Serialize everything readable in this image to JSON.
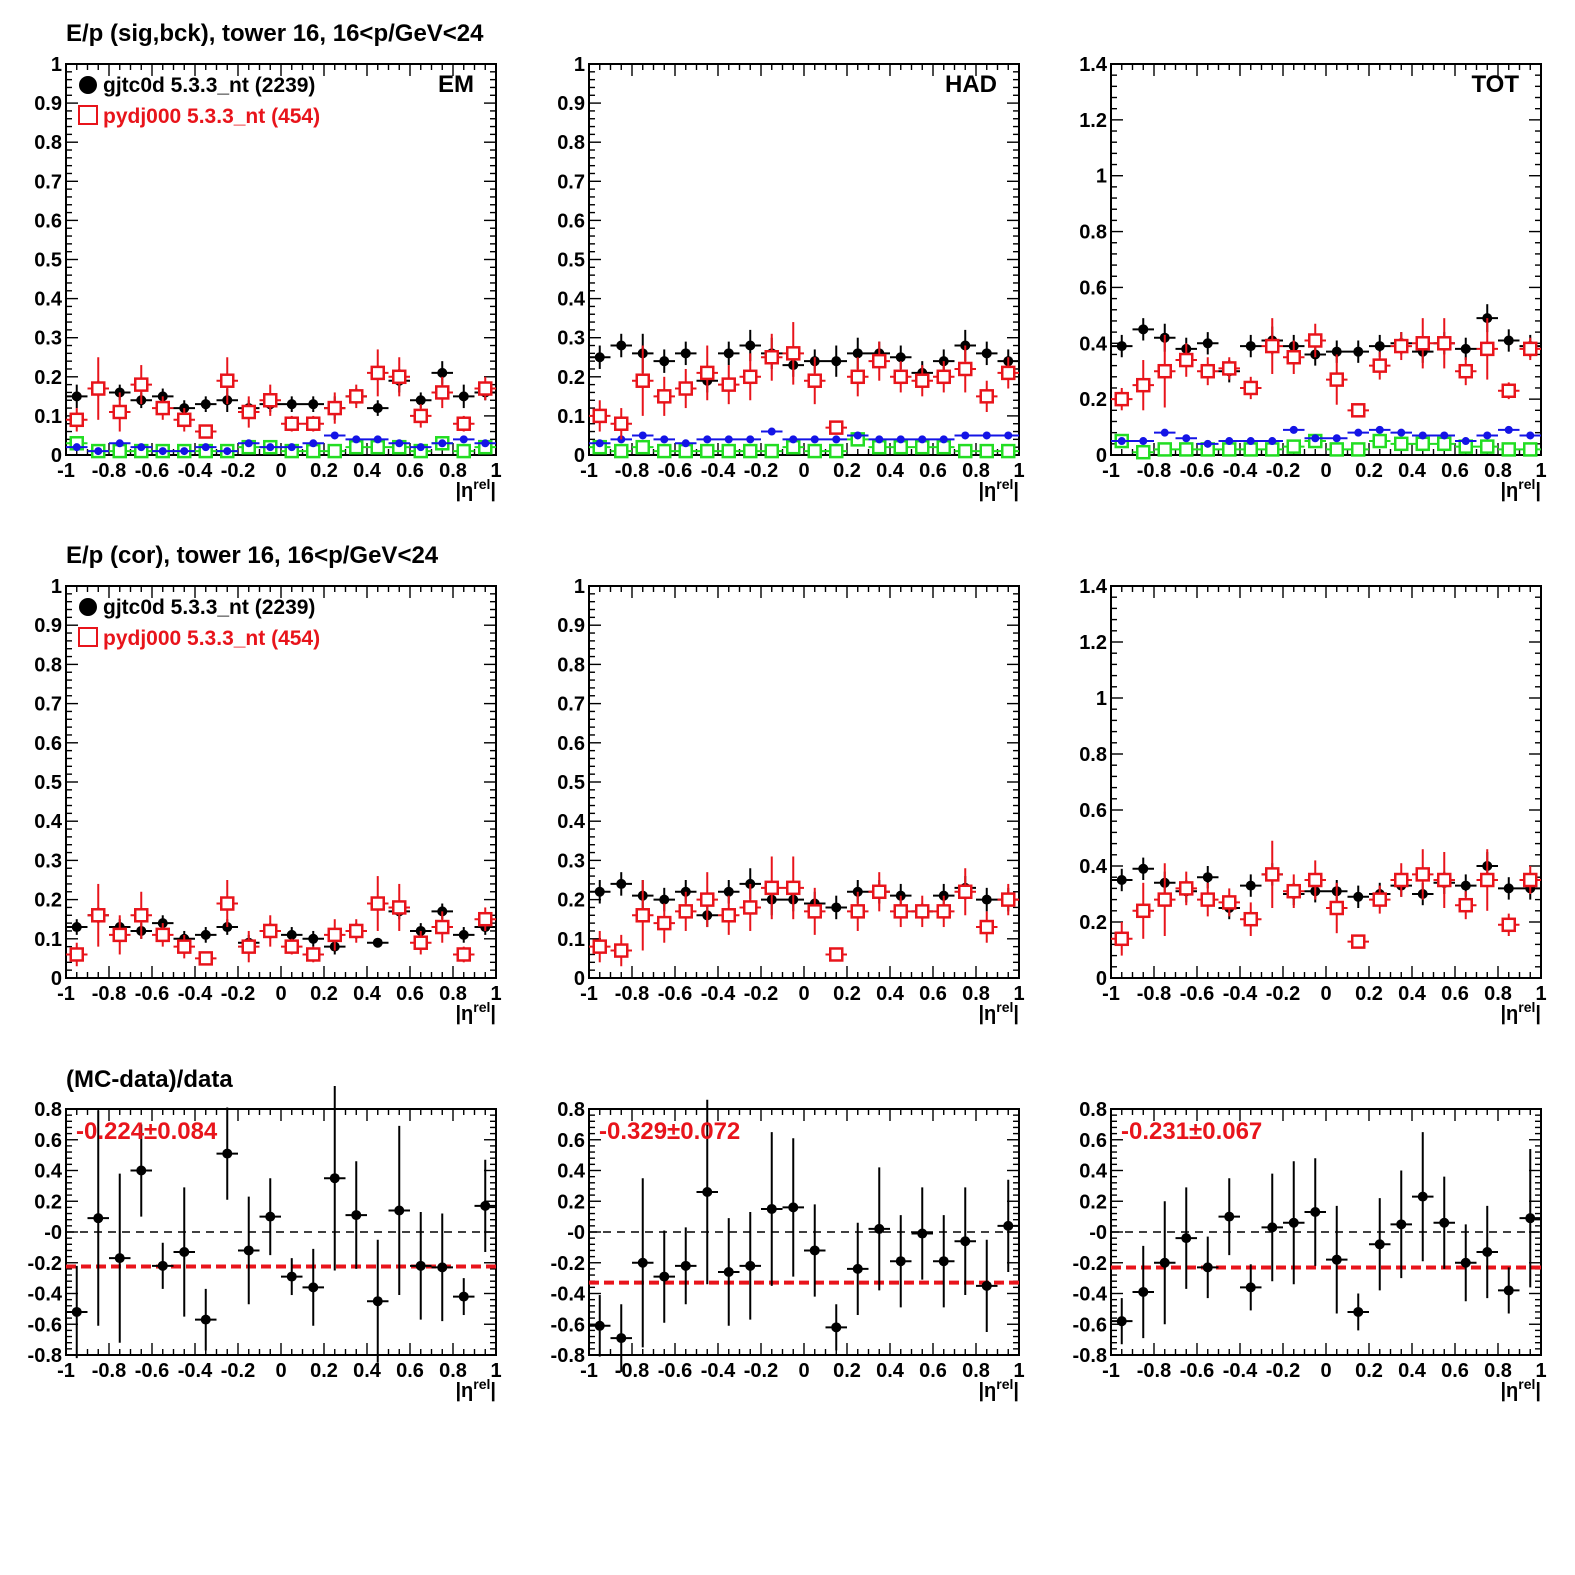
{
  "titles": {
    "row1": "E/p (sig,bck), tower 16, 16<p/GeV<24",
    "row2": "E/p (cor), tower 16, 16<p/GeV<24",
    "row3": "(MC-data)/data"
  },
  "colors": {
    "data": "#000000",
    "mc": "#e8141b",
    "blue": "#1414e6",
    "green": "#22dd22",
    "dash": "#e8141b"
  },
  "chart_data": {
    "type": "scatter",
    "x_centers": [
      -0.95,
      -0.85,
      -0.75,
      -0.65,
      -0.55,
      -0.45,
      -0.35,
      -0.25,
      -0.15,
      -0.05,
      0.05,
      0.15,
      0.25,
      0.35,
      0.45,
      0.55,
      0.65,
      0.75,
      0.85,
      0.95
    ],
    "xlabel": "|ηrel|",
    "xlabel_base": "|η",
    "xlabel_sup": "rel",
    "xlabel_end": "|",
    "xlim": [
      -1,
      1
    ],
    "x_ticks": [
      "-1",
      "-0.8",
      "-0.6",
      "-0.4",
      "-0.2",
      "0",
      "0.2",
      "0.4",
      "0.6",
      "0.8",
      "1"
    ],
    "legend": {
      "data": "gjtc0d 5.3.3_nt (2239)",
      "mc": "pydj000 5.3.3_nt (454)"
    },
    "row1": [
      {
        "label": "EM",
        "ylim": [
          0,
          1
        ],
        "y_ticks": [
          "0",
          "0.1",
          "0.2",
          "0.3",
          "0.4",
          "0.5",
          "0.6",
          "0.7",
          "0.8",
          "0.9",
          "1"
        ],
        "data": [
          0.15,
          0.17,
          0.16,
          0.14,
          0.15,
          0.12,
          0.13,
          0.14,
          0.12,
          0.13,
          0.13,
          0.13,
          0.12,
          0.15,
          0.12,
          0.19,
          0.14,
          0.21,
          0.15,
          0.16
        ],
        "data_err": [
          0.03,
          0.02,
          0.02,
          0.02,
          0.02,
          0.02,
          0.02,
          0.03,
          0.02,
          0.02,
          0.02,
          0.02,
          0.03,
          0.02,
          0.02,
          0.03,
          0.02,
          0.03,
          0.03,
          0.02
        ],
        "mc": [
          0.09,
          0.17,
          0.11,
          0.18,
          0.12,
          0.09,
          0.06,
          0.19,
          0.11,
          0.14,
          0.08,
          0.08,
          0.12,
          0.15,
          0.21,
          0.2,
          0.1,
          0.16,
          0.08,
          0.17
        ],
        "mc_err": [
          0.03,
          0.08,
          0.05,
          0.05,
          0.03,
          0.03,
          0.01,
          0.06,
          0.04,
          0.04,
          0.02,
          0.02,
          0.04,
          0.03,
          0.06,
          0.05,
          0.03,
          0.04,
          0.02,
          0.03
        ],
        "blue": [
          0.02,
          0.01,
          0.03,
          0.02,
          0.01,
          0.01,
          0.02,
          0.01,
          0.03,
          0.02,
          0.02,
          0.03,
          0.05,
          0.04,
          0.04,
          0.03,
          0.02,
          0.03,
          0.04,
          0.03
        ],
        "green": [
          0.03,
          0.01,
          0.01,
          0.01,
          0.01,
          0.01,
          0.01,
          0.01,
          0.02,
          0.02,
          0.01,
          0.01,
          0.01,
          0.02,
          0.02,
          0.02,
          0.01,
          0.03,
          0.01,
          0.02
        ]
      },
      {
        "label": "HAD",
        "ylim": [
          0,
          1
        ],
        "y_ticks": [
          "0",
          "0.1",
          "0.2",
          "0.3",
          "0.4",
          "0.5",
          "0.6",
          "0.7",
          "0.8",
          "0.9",
          "1"
        ],
        "data": [
          0.25,
          0.28,
          0.26,
          0.24,
          0.26,
          0.19,
          0.26,
          0.28,
          0.26,
          0.23,
          0.24,
          0.24,
          0.26,
          0.26,
          0.25,
          0.21,
          0.24,
          0.28,
          0.26,
          0.24
        ],
        "data_err": [
          0.03,
          0.03,
          0.05,
          0.03,
          0.03,
          0.03,
          0.03,
          0.04,
          0.04,
          0.03,
          0.03,
          0.04,
          0.04,
          0.03,
          0.03,
          0.03,
          0.03,
          0.04,
          0.03,
          0.03
        ],
        "mc": [
          0.1,
          0.08,
          0.19,
          0.15,
          0.17,
          0.21,
          0.18,
          0.2,
          0.25,
          0.26,
          0.19,
          0.07,
          0.2,
          0.24,
          0.2,
          0.19,
          0.2,
          0.22,
          0.15,
          0.21
        ],
        "mc_err": [
          0.04,
          0.04,
          0.09,
          0.05,
          0.05,
          0.07,
          0.05,
          0.06,
          0.06,
          0.08,
          0.06,
          0.01,
          0.05,
          0.05,
          0.04,
          0.04,
          0.04,
          0.06,
          0.04,
          0.04
        ],
        "blue": [
          0.03,
          0.04,
          0.05,
          0.04,
          0.03,
          0.04,
          0.04,
          0.04,
          0.06,
          0.04,
          0.04,
          0.04,
          0.05,
          0.04,
          0.04,
          0.04,
          0.04,
          0.05,
          0.05,
          0.05
        ],
        "green": [
          0.02,
          0.01,
          0.02,
          0.01,
          0.01,
          0.01,
          0.01,
          0.01,
          0.01,
          0.02,
          0.01,
          0.01,
          0.04,
          0.02,
          0.02,
          0.02,
          0.02,
          0.01,
          0.01,
          0.01
        ]
      },
      {
        "label": "TOT",
        "ylim": [
          0,
          1.4
        ],
        "y_ticks": [
          "0",
          "0.2",
          "0.4",
          "0.6",
          "0.8",
          "1",
          "1.2",
          "1.4"
        ],
        "data": [
          0.39,
          0.45,
          0.42,
          0.38,
          0.4,
          0.3,
          0.39,
          0.41,
          0.39,
          0.36,
          0.37,
          0.37,
          0.39,
          0.4,
          0.37,
          0.4,
          0.38,
          0.49,
          0.41,
          0.39
        ],
        "data_err": [
          0.04,
          0.04,
          0.05,
          0.04,
          0.04,
          0.04,
          0.04,
          0.05,
          0.04,
          0.04,
          0.04,
          0.04,
          0.04,
          0.04,
          0.04,
          0.04,
          0.04,
          0.05,
          0.04,
          0.04
        ],
        "mc": [
          0.2,
          0.25,
          0.3,
          0.34,
          0.3,
          0.31,
          0.24,
          0.39,
          0.35,
          0.41,
          0.27,
          0.16,
          0.32,
          0.39,
          0.4,
          0.4,
          0.3,
          0.38,
          0.23,
          0.38
        ],
        "mc_err": [
          0.04,
          0.09,
          0.13,
          0.06,
          0.05,
          0.04,
          0.04,
          0.1,
          0.06,
          0.06,
          0.09,
          0.01,
          0.05,
          0.05,
          0.09,
          0.09,
          0.05,
          0.11,
          0.03,
          0.04
        ],
        "blue": [
          0.05,
          0.05,
          0.08,
          0.06,
          0.04,
          0.05,
          0.05,
          0.05,
          0.09,
          0.06,
          0.06,
          0.08,
          0.09,
          0.08,
          0.07,
          0.07,
          0.05,
          0.07,
          0.09,
          0.07
        ],
        "green": [
          0.05,
          0.01,
          0.02,
          0.02,
          0.02,
          0.02,
          0.02,
          0.02,
          0.03,
          0.05,
          0.02,
          0.02,
          0.05,
          0.04,
          0.04,
          0.04,
          0.03,
          0.03,
          0.02,
          0.02
        ]
      }
    ],
    "row2": [
      {
        "ylim": [
          0,
          1
        ],
        "y_ticks": [
          "0",
          "0.1",
          "0.2",
          "0.3",
          "0.4",
          "0.5",
          "0.6",
          "0.7",
          "0.8",
          "0.9",
          "1"
        ],
        "data": [
          0.13,
          0.16,
          0.13,
          0.12,
          0.14,
          0.1,
          0.11,
          0.13,
          0.09,
          0.12,
          0.11,
          0.1,
          0.08,
          0.12,
          0.09,
          0.17,
          0.12,
          0.17,
          0.11,
          0.13
        ],
        "data_err": [
          0.02,
          0.02,
          0.02,
          0.02,
          0.02,
          0.02,
          0.02,
          0.02,
          0.02,
          0.02,
          0.02,
          0.02,
          0.02,
          0.02,
          0.01,
          0.02,
          0.02,
          0.02,
          0.02,
          0.02
        ],
        "mc": [
          0.06,
          0.16,
          0.11,
          0.16,
          0.11,
          0.08,
          0.05,
          0.19,
          0.08,
          0.12,
          0.08,
          0.06,
          0.11,
          0.12,
          0.19,
          0.18,
          0.09,
          0.13,
          0.06,
          0.15
        ],
        "mc_err": [
          0.03,
          0.08,
          0.05,
          0.06,
          0.03,
          0.03,
          0.01,
          0.06,
          0.04,
          0.04,
          0.02,
          0.02,
          0.04,
          0.03,
          0.07,
          0.06,
          0.03,
          0.04,
          0.02,
          0.03
        ]
      },
      {
        "ylim": [
          0,
          1
        ],
        "y_ticks": [
          "0",
          "0.1",
          "0.2",
          "0.3",
          "0.4",
          "0.5",
          "0.6",
          "0.7",
          "0.8",
          "0.9",
          "1"
        ],
        "data": [
          0.22,
          0.24,
          0.21,
          0.2,
          0.22,
          0.16,
          0.22,
          0.24,
          0.2,
          0.2,
          0.19,
          0.18,
          0.22,
          0.22,
          0.21,
          0.17,
          0.21,
          0.23,
          0.2,
          0.2
        ],
        "data_err": [
          0.03,
          0.03,
          0.04,
          0.03,
          0.03,
          0.03,
          0.03,
          0.04,
          0.04,
          0.03,
          0.03,
          0.03,
          0.03,
          0.03,
          0.03,
          0.02,
          0.03,
          0.03,
          0.03,
          0.03
        ],
        "mc": [
          0.08,
          0.07,
          0.16,
          0.14,
          0.17,
          0.2,
          0.16,
          0.18,
          0.23,
          0.23,
          0.17,
          0.06,
          0.17,
          0.22,
          0.17,
          0.17,
          0.17,
          0.22,
          0.13,
          0.2
        ],
        "mc_err": [
          0.04,
          0.04,
          0.09,
          0.05,
          0.05,
          0.07,
          0.05,
          0.06,
          0.08,
          0.08,
          0.06,
          0.01,
          0.05,
          0.05,
          0.04,
          0.04,
          0.04,
          0.06,
          0.04,
          0.04
        ]
      },
      {
        "ylim": [
          0,
          1.4
        ],
        "y_ticks": [
          "0",
          "0.2",
          "0.4",
          "0.6",
          "0.8",
          "1",
          "1.2",
          "1.4"
        ],
        "data": [
          0.35,
          0.39,
          0.34,
          0.31,
          0.36,
          0.25,
          0.33,
          0.37,
          0.3,
          0.31,
          0.31,
          0.29,
          0.3,
          0.33,
          0.3,
          0.34,
          0.33,
          0.4,
          0.32,
          0.32
        ],
        "data_err": [
          0.04,
          0.04,
          0.04,
          0.04,
          0.04,
          0.04,
          0.04,
          0.04,
          0.04,
          0.04,
          0.04,
          0.04,
          0.04,
          0.04,
          0.04,
          0.04,
          0.04,
          0.05,
          0.04,
          0.04
        ],
        "mc": [
          0.14,
          0.24,
          0.28,
          0.32,
          0.28,
          0.27,
          0.21,
          0.37,
          0.31,
          0.35,
          0.25,
          0.13,
          0.28,
          0.35,
          0.37,
          0.35,
          0.26,
          0.35,
          0.19,
          0.35
        ],
        "mc_err": [
          0.06,
          0.1,
          0.13,
          0.06,
          0.06,
          0.05,
          0.06,
          0.12,
          0.06,
          0.07,
          0.09,
          0.01,
          0.05,
          0.06,
          0.09,
          0.1,
          0.05,
          0.11,
          0.04,
          0.05
        ]
      }
    ],
    "row3": [
      {
        "ylim": [
          -0.8,
          0.8
        ],
        "y_ticks": [
          "-0.8",
          "-0.6",
          "-0.4",
          "-0.2",
          "-0",
          "0.2",
          "0.4",
          "0.6",
          "0.8"
        ],
        "label": "-0.224±0.084",
        "mean": -0.224,
        "values": [
          -0.52,
          0.09,
          -0.17,
          0.4,
          -0.22,
          -0.13,
          -0.57,
          0.51,
          -0.12,
          0.1,
          -0.29,
          -0.36,
          0.35,
          0.11,
          -0.45,
          0.14,
          -0.22,
          -0.23,
          -0.42,
          0.17
        ],
        "errs": [
          0.3,
          0.7,
          0.55,
          0.3,
          0.15,
          0.42,
          0.2,
          0.3,
          0.35,
          0.25,
          0.12,
          0.25,
          0.6,
          0.35,
          0.4,
          0.55,
          0.35,
          0.35,
          0.12,
          0.3
        ]
      },
      {
        "ylim": [
          -0.8,
          0.8
        ],
        "y_ticks": [
          "-0.8",
          "-0.6",
          "-0.4",
          "-0.2",
          "-0",
          "0.2",
          "0.4",
          "0.6",
          "0.8"
        ],
        "label": "-0.329±0.072",
        "mean": -0.329,
        "values": [
          -0.61,
          -0.69,
          -0.2,
          -0.29,
          -0.22,
          0.26,
          -0.26,
          -0.22,
          0.15,
          0.16,
          -0.12,
          -0.62,
          -0.24,
          0.02,
          -0.19,
          -0.01,
          -0.19,
          -0.06,
          -0.35,
          0.04
        ],
        "errs": [
          0.2,
          0.22,
          0.55,
          0.3,
          0.25,
          0.6,
          0.35,
          0.35,
          0.5,
          0.45,
          0.3,
          0.15,
          0.3,
          0.4,
          0.3,
          0.3,
          0.3,
          0.35,
          0.3,
          0.3
        ]
      },
      {
        "ylim": [
          -0.8,
          0.8
        ],
        "y_ticks": [
          "-0.8",
          "-0.6",
          "-0.4",
          "-0.2",
          "-0",
          "0.2",
          "0.4",
          "0.6",
          "0.8"
        ],
        "label": "-0.231±0.067",
        "mean": -0.231,
        "values": [
          -0.58,
          -0.39,
          -0.2,
          -0.04,
          -0.23,
          0.1,
          -0.36,
          0.03,
          0.06,
          0.13,
          -0.18,
          -0.52,
          -0.08,
          0.05,
          0.23,
          0.06,
          -0.2,
          -0.13,
          -0.38,
          0.09
        ],
        "errs": [
          0.15,
          0.3,
          0.4,
          0.33,
          0.2,
          0.25,
          0.15,
          0.35,
          0.4,
          0.35,
          0.35,
          0.12,
          0.3,
          0.35,
          0.42,
          0.3,
          0.25,
          0.3,
          0.15,
          0.45
        ]
      }
    ]
  }
}
